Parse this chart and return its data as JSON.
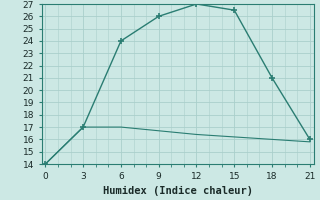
{
  "line1_x": [
    0,
    3,
    6,
    9,
    12,
    15,
    18,
    21
  ],
  "line1_y": [
    14,
    17,
    24,
    26,
    27,
    26.5,
    21,
    16
  ],
  "line2_x": [
    0,
    3,
    6,
    9,
    12,
    15,
    18,
    21
  ],
  "line2_y": [
    14,
    17,
    17,
    16.7,
    16.4,
    16.2,
    16.0,
    15.8
  ],
  "line_color": "#2a7d72",
  "bg_color": "#cce8e4",
  "grid_color": "#aacfcb",
  "xlabel": "Humidex (Indice chaleur)",
  "xlim": [
    -0.3,
    21.3
  ],
  "ylim": [
    14,
    27
  ],
  "xticks": [
    0,
    3,
    6,
    9,
    12,
    15,
    18,
    21
  ],
  "yticks": [
    14,
    15,
    16,
    17,
    18,
    19,
    20,
    21,
    22,
    23,
    24,
    25,
    26,
    27
  ],
  "tick_fontsize": 6.5,
  "xlabel_fontsize": 7.5
}
